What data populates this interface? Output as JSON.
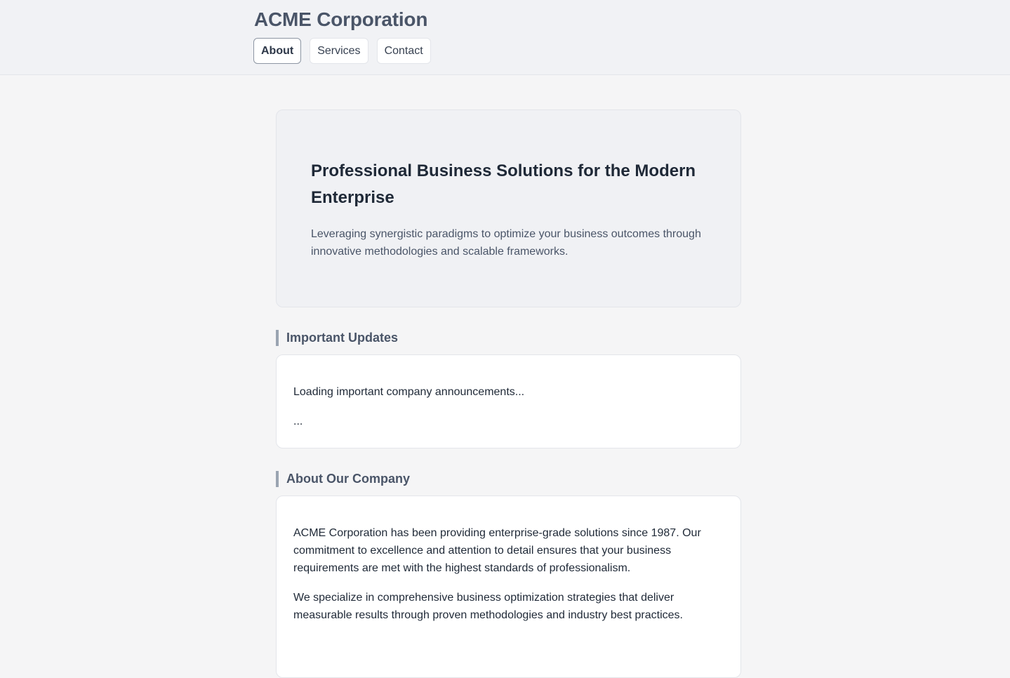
{
  "header": {
    "brand": "ACME Corporation",
    "nav": [
      {
        "label": "About",
        "active": true
      },
      {
        "label": "Services",
        "active": false
      },
      {
        "label": "Contact",
        "active": false
      }
    ]
  },
  "hero": {
    "title": "Professional Business Solutions for the Modern Enterprise",
    "subtitle": "Leveraging synergistic paradigms to optimize your business outcomes through innovative methodologies and scalable frameworks."
  },
  "updates": {
    "heading": "Important Updates",
    "loading_text": "Loading important company announcements...",
    "ellipsis": "..."
  },
  "about": {
    "heading": "About Our Company",
    "paragraphs": [
      "ACME Corporation has been providing enterprise-grade solutions since 1987. Our commitment to excellence and attention to detail ensures that your business requirements are met with the highest standards of professionalism.",
      "We specialize in comprehensive business optimization strategies that deliver measurable results through proven methodologies and industry best practices."
    ]
  },
  "colors": {
    "page_bg": "#f5f5f6",
    "header_bg": "#f1f2f5",
    "hero_bg": "#f0f1f4",
    "accent_bar": "#9aa4b2",
    "text_primary": "#1f2937",
    "text_muted": "#4a5568"
  }
}
